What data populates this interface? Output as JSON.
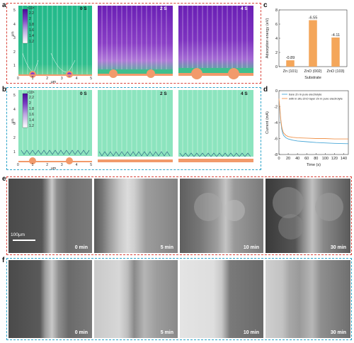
{
  "panels": {
    "a": {
      "label": "a",
      "times": [
        "0 S",
        "2 S",
        "4 S"
      ],
      "colorbar_exp": "×10⁵",
      "colorbar_ticks": [
        "2.2",
        "2",
        "1.8",
        "1.6",
        "1.4",
        "1.2"
      ],
      "xticks": [
        "0",
        "1",
        "2",
        "3",
        "4",
        "5"
      ],
      "yticks": [
        "5",
        "4",
        "3",
        "2",
        "1",
        "0"
      ],
      "axis_unit": "μm"
    },
    "b": {
      "label": "b",
      "times": [
        "0 S",
        "2 S",
        "4 S"
      ],
      "colorbar_exp": "×10⁵",
      "colorbar_ticks": [
        "2.2",
        "2",
        "1.8",
        "1.6",
        "1.4",
        "1.2"
      ],
      "xticks": [
        "0",
        "1",
        "2",
        "3",
        "4",
        "5"
      ],
      "yticks": [
        "5",
        "4",
        "3",
        "2",
        "1",
        "0"
      ],
      "axis_unit": "μm"
    },
    "c": {
      "label": "c"
    },
    "d": {
      "label": "d"
    },
    "e": {
      "label": "e",
      "times": [
        "0 min",
        "5 min",
        "10 min",
        "30 min"
      ],
      "scale": "100μm"
    },
    "f": {
      "label": "f",
      "times": [
        "0 min",
        "5 min",
        "10 min",
        "30 min"
      ]
    }
  },
  "chart_data": [
    {
      "type": "bar",
      "ylabel": "Adsorption energy (eV)",
      "xlabel": "Substrate",
      "categories": [
        "Zn (101)",
        "ZnO (002)",
        "ZnO (103)"
      ],
      "values": [
        -0.89,
        -6.55,
        -4.11
      ],
      "value_labels": [
        "-0.89",
        "-6.55",
        "-4.11"
      ],
      "yticks": [
        "0",
        "2",
        "4",
        "6",
        "8"
      ],
      "ylim": [
        0,
        8
      ],
      "color": "#f4a65a"
    },
    {
      "type": "line",
      "xlabel": "Time (s)",
      "ylabel": "Current (mA)",
      "xlim": [
        0,
        150
      ],
      "ylim": [
        -8,
        0
      ],
      "xticks": [
        "0",
        "20",
        "40",
        "60",
        "80",
        "100",
        "120",
        "140"
      ],
      "yticks": [
        "0",
        "-2",
        "-4",
        "-6",
        "-8"
      ],
      "legend_position": "top-right",
      "series": [
        {
          "name": "bare Zn in pure electrolyte",
          "color": "#4aa8d8",
          "x": [
            0,
            2,
            4,
            6,
            8,
            10,
            15,
            20,
            30,
            40,
            60,
            80,
            100,
            120,
            150
          ],
          "y": [
            -1.2,
            -2.4,
            -3.8,
            -4.8,
            -5.3,
            -5.6,
            -5.9,
            -6.05,
            -6.2,
            -6.3,
            -6.4,
            -6.5,
            -6.55,
            -6.6,
            -6.65
          ]
        },
        {
          "name": "with in situ ZnO layer Zn in pure electrolyte",
          "color": "#f0944d",
          "x": [
            0,
            2,
            4,
            6,
            8,
            10,
            15,
            20,
            30,
            40,
            60,
            80,
            100,
            120,
            150
          ],
          "y": [
            -1.0,
            -2.2,
            -3.6,
            -4.5,
            -5.0,
            -5.3,
            -5.6,
            -5.75,
            -5.85,
            -5.9,
            -5.95,
            -6.0,
            -6.0,
            -6.05,
            -6.05
          ]
        }
      ]
    }
  ]
}
